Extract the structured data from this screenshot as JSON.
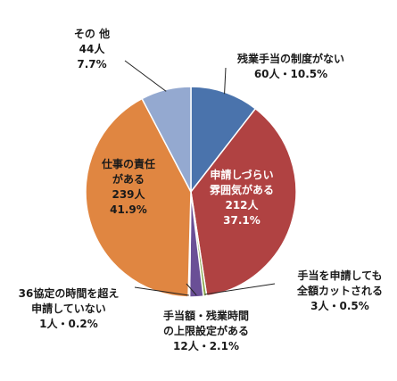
{
  "chart_data": {
    "type": "pie",
    "title": "",
    "slices": [
      {
        "label": "残業手当の制度がない",
        "count": "60人",
        "percent": 10.5,
        "percent_label": "10.5%",
        "color": "#4a73ac",
        "label_lines": [
          "残業手当の制度がない",
          "60人・10.5%"
        ]
      },
      {
        "label": "申請しづらい雰囲気がある",
        "count": "212人",
        "percent": 37.1,
        "percent_label": "37.1%",
        "color": "#b04242",
        "label_lines": [
          "申請しづらい",
          "雰囲気がある",
          "212人",
          "37.1%"
        ]
      },
      {
        "label": "手当を申請しても全額カットされる",
        "count": "3人",
        "percent": 0.5,
        "percent_label": "0.5%",
        "color": "#8aa94f",
        "label_lines": [
          "手当を申請しても",
          "全額カットされる",
          "3人・0.5%"
        ]
      },
      {
        "label": "手当額・残業時間の上限設定がある",
        "count": "12人",
        "percent": 2.1,
        "percent_label": "2.1%",
        "color": "#6a4f96",
        "label_lines": [
          "手当額・残業時間",
          "の上限設定がある",
          "12人・2.1%"
        ]
      },
      {
        "label": "36協定の時間を超え申請していない",
        "count": "1人",
        "percent": 0.2,
        "percent_label": "0.2%",
        "color": "#3a9ab5",
        "label_lines": [
          "36協定の時間を超え",
          "申請していない",
          "1人・0.2%"
        ]
      },
      {
        "label": "仕事の責任がある",
        "count": "239人",
        "percent": 41.9,
        "percent_label": "41.9%",
        "color": "#e08641",
        "label_lines": [
          "仕事の責任",
          "がある",
          "239人",
          "41.9%"
        ]
      },
      {
        "label": "その他",
        "count": "44人",
        "percent": 7.7,
        "percent_label": "7.7%",
        "color": "#94a9d0",
        "label_lines": [
          "その 他",
          "44人",
          "7.7%"
        ]
      }
    ]
  }
}
